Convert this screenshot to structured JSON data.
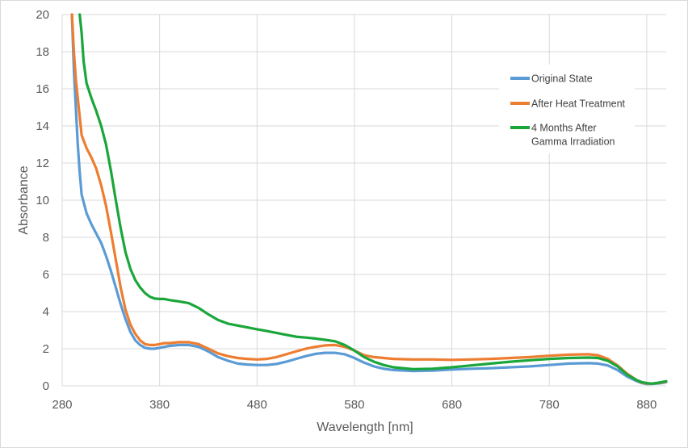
{
  "chart_data": {
    "type": "line",
    "xlabel": "Wavelength [nm]",
    "ylabel": "Absorbance",
    "xlim": [
      280,
      900
    ],
    "ylim": [
      0,
      20
    ],
    "xticks": [
      280,
      380,
      480,
      580,
      680,
      780,
      880
    ],
    "yticks": [
      0,
      2,
      4,
      6,
      8,
      10,
      12,
      14,
      16,
      18,
      20
    ],
    "grid": true,
    "legend_position": "top-right",
    "series": [
      {
        "name": "Original State",
        "color": "#5b9bd5",
        "x": [
          290,
          292,
          294,
          296,
          298,
          300,
          305,
          310,
          315,
          320,
          325,
          330,
          335,
          340,
          345,
          350,
          355,
          360,
          365,
          370,
          375,
          380,
          385,
          390,
          400,
          410,
          420,
          430,
          440,
          450,
          460,
          470,
          480,
          490,
          500,
          510,
          520,
          530,
          540,
          550,
          560,
          570,
          580,
          590,
          600,
          610,
          620,
          640,
          660,
          680,
          700,
          720,
          740,
          760,
          780,
          800,
          820,
          830,
          840,
          850,
          860,
          870,
          875,
          880,
          885,
          890,
          895,
          900
        ],
        "y": [
          20,
          17,
          15,
          13,
          11.5,
          10.3,
          9.3,
          8.7,
          8.2,
          7.7,
          7.0,
          6.2,
          5.3,
          4.4,
          3.6,
          2.9,
          2.45,
          2.2,
          2.05,
          2.0,
          2.0,
          2.05,
          2.1,
          2.15,
          2.2,
          2.2,
          2.1,
          1.85,
          1.55,
          1.35,
          1.2,
          1.15,
          1.12,
          1.12,
          1.18,
          1.3,
          1.45,
          1.6,
          1.72,
          1.78,
          1.78,
          1.7,
          1.5,
          1.25,
          1.05,
          0.92,
          0.85,
          0.8,
          0.82,
          0.88,
          0.92,
          0.95,
          1.0,
          1.05,
          1.12,
          1.2,
          1.22,
          1.2,
          1.1,
          0.85,
          0.5,
          0.25,
          0.15,
          0.1,
          0.1,
          0.12,
          0.15,
          0.2
        ]
      },
      {
        "name": "After Heat Treatment",
        "color": "#ed7d31",
        "x": [
          290,
          292,
          294,
          296,
          298,
          300,
          305,
          310,
          315,
          320,
          325,
          330,
          335,
          340,
          345,
          350,
          355,
          360,
          365,
          370,
          375,
          380,
          385,
          390,
          400,
          410,
          420,
          430,
          440,
          450,
          460,
          470,
          480,
          490,
          500,
          510,
          520,
          530,
          540,
          550,
          560,
          570,
          580,
          590,
          600,
          610,
          620,
          640,
          660,
          680,
          700,
          720,
          740,
          760,
          780,
          800,
          820,
          830,
          840,
          850,
          860,
          870,
          875,
          880,
          885,
          890,
          895,
          900
        ],
        "y": [
          20,
          18,
          16.5,
          15.5,
          14.5,
          13.5,
          12.8,
          12.3,
          11.7,
          10.8,
          9.7,
          8.3,
          6.8,
          5.3,
          4.1,
          3.3,
          2.8,
          2.45,
          2.25,
          2.2,
          2.2,
          2.25,
          2.3,
          2.3,
          2.35,
          2.35,
          2.25,
          2.0,
          1.75,
          1.6,
          1.5,
          1.45,
          1.42,
          1.45,
          1.55,
          1.7,
          1.85,
          2.0,
          2.1,
          2.18,
          2.2,
          2.1,
          1.9,
          1.65,
          1.55,
          1.5,
          1.45,
          1.42,
          1.42,
          1.4,
          1.42,
          1.45,
          1.5,
          1.55,
          1.62,
          1.68,
          1.7,
          1.65,
          1.45,
          1.1,
          0.65,
          0.3,
          0.18,
          0.12,
          0.12,
          0.15,
          0.18,
          0.22
        ]
      },
      {
        "name": "4 Months After Gamma Irradiation",
        "color": "#1aa63a",
        "x": [
          298,
          300,
          302,
          305,
          310,
          315,
          320,
          325,
          330,
          335,
          340,
          345,
          350,
          355,
          360,
          365,
          370,
          375,
          380,
          385,
          390,
          400,
          410,
          420,
          430,
          440,
          450,
          460,
          470,
          480,
          490,
          500,
          510,
          520,
          530,
          540,
          550,
          560,
          570,
          580,
          590,
          600,
          610,
          620,
          640,
          660,
          680,
          700,
          720,
          740,
          760,
          780,
          800,
          820,
          830,
          840,
          850,
          860,
          870,
          875,
          880,
          885,
          890,
          895,
          900
        ],
        "y": [
          20,
          19,
          17.5,
          16.3,
          15.5,
          14.8,
          14.0,
          13.0,
          11.6,
          10.0,
          8.5,
          7.2,
          6.3,
          5.7,
          5.3,
          5.0,
          4.8,
          4.7,
          4.68,
          4.68,
          4.62,
          4.55,
          4.45,
          4.2,
          3.85,
          3.55,
          3.35,
          3.25,
          3.15,
          3.05,
          2.95,
          2.85,
          2.75,
          2.65,
          2.6,
          2.55,
          2.48,
          2.4,
          2.2,
          1.9,
          1.55,
          1.3,
          1.12,
          1.0,
          0.9,
          0.92,
          1.0,
          1.1,
          1.2,
          1.3,
          1.38,
          1.45,
          1.5,
          1.52,
          1.5,
          1.35,
          1.05,
          0.6,
          0.3,
          0.2,
          0.15,
          0.12,
          0.15,
          0.2,
          0.25
        ]
      }
    ]
  }
}
